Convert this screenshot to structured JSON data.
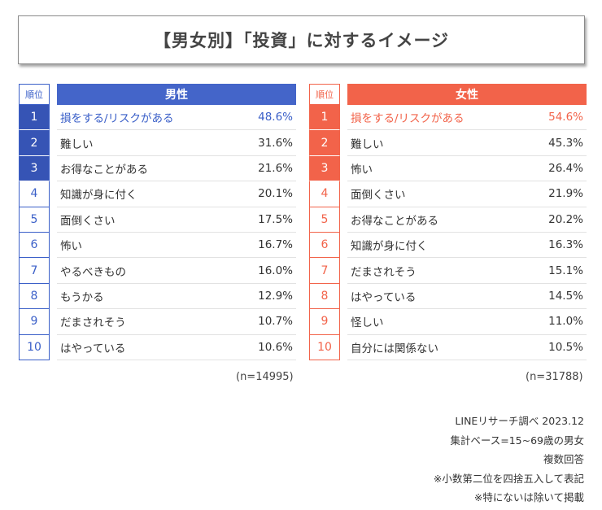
{
  "title": "【男女別】「投資」に対するイメージ",
  "rank_header": "順位",
  "chart_data": [
    {
      "type": "table",
      "group": "男性",
      "n": "(n=14995)",
      "ranks": [
        "1",
        "2",
        "3",
        "4",
        "5",
        "6",
        "7",
        "8",
        "9",
        "10"
      ],
      "items": [
        "損をする/リスクがある",
        "難しい",
        "お得なことがある",
        "知識が身に付く",
        "面倒くさい",
        "怖い",
        "やるべきもの",
        "もうかる",
        "だまされそう",
        "はやっている"
      ],
      "values": [
        "48.6%",
        "31.6%",
        "21.6%",
        "20.1%",
        "17.5%",
        "16.7%",
        "16.0%",
        "12.9%",
        "10.7%",
        "10.6%"
      ],
      "accent": "#4465c9"
    },
    {
      "type": "table",
      "group": "女性",
      "n": "(n=31788)",
      "ranks": [
        "1",
        "2",
        "3",
        "4",
        "5",
        "6",
        "7",
        "8",
        "9",
        "10"
      ],
      "items": [
        "損をする/リスクがある",
        "難しい",
        "怖い",
        "面倒くさい",
        "お得なことがある",
        "知識が身に付く",
        "だまされそう",
        "はやっている",
        "怪しい",
        "自分には関係ない"
      ],
      "values": [
        "54.6%",
        "45.3%",
        "26.4%",
        "21.9%",
        "20.2%",
        "16.3%",
        "15.1%",
        "14.5%",
        "11.0%",
        "10.5%"
      ],
      "accent": "#f2634a"
    }
  ],
  "notes": [
    "LINEリサーチ調べ 2023.12",
    "集計ベース=15~69歳の男女",
    "複数回答",
    "※小数第二位を四捨五入して表記",
    "※特にないは除いて掲載"
  ]
}
